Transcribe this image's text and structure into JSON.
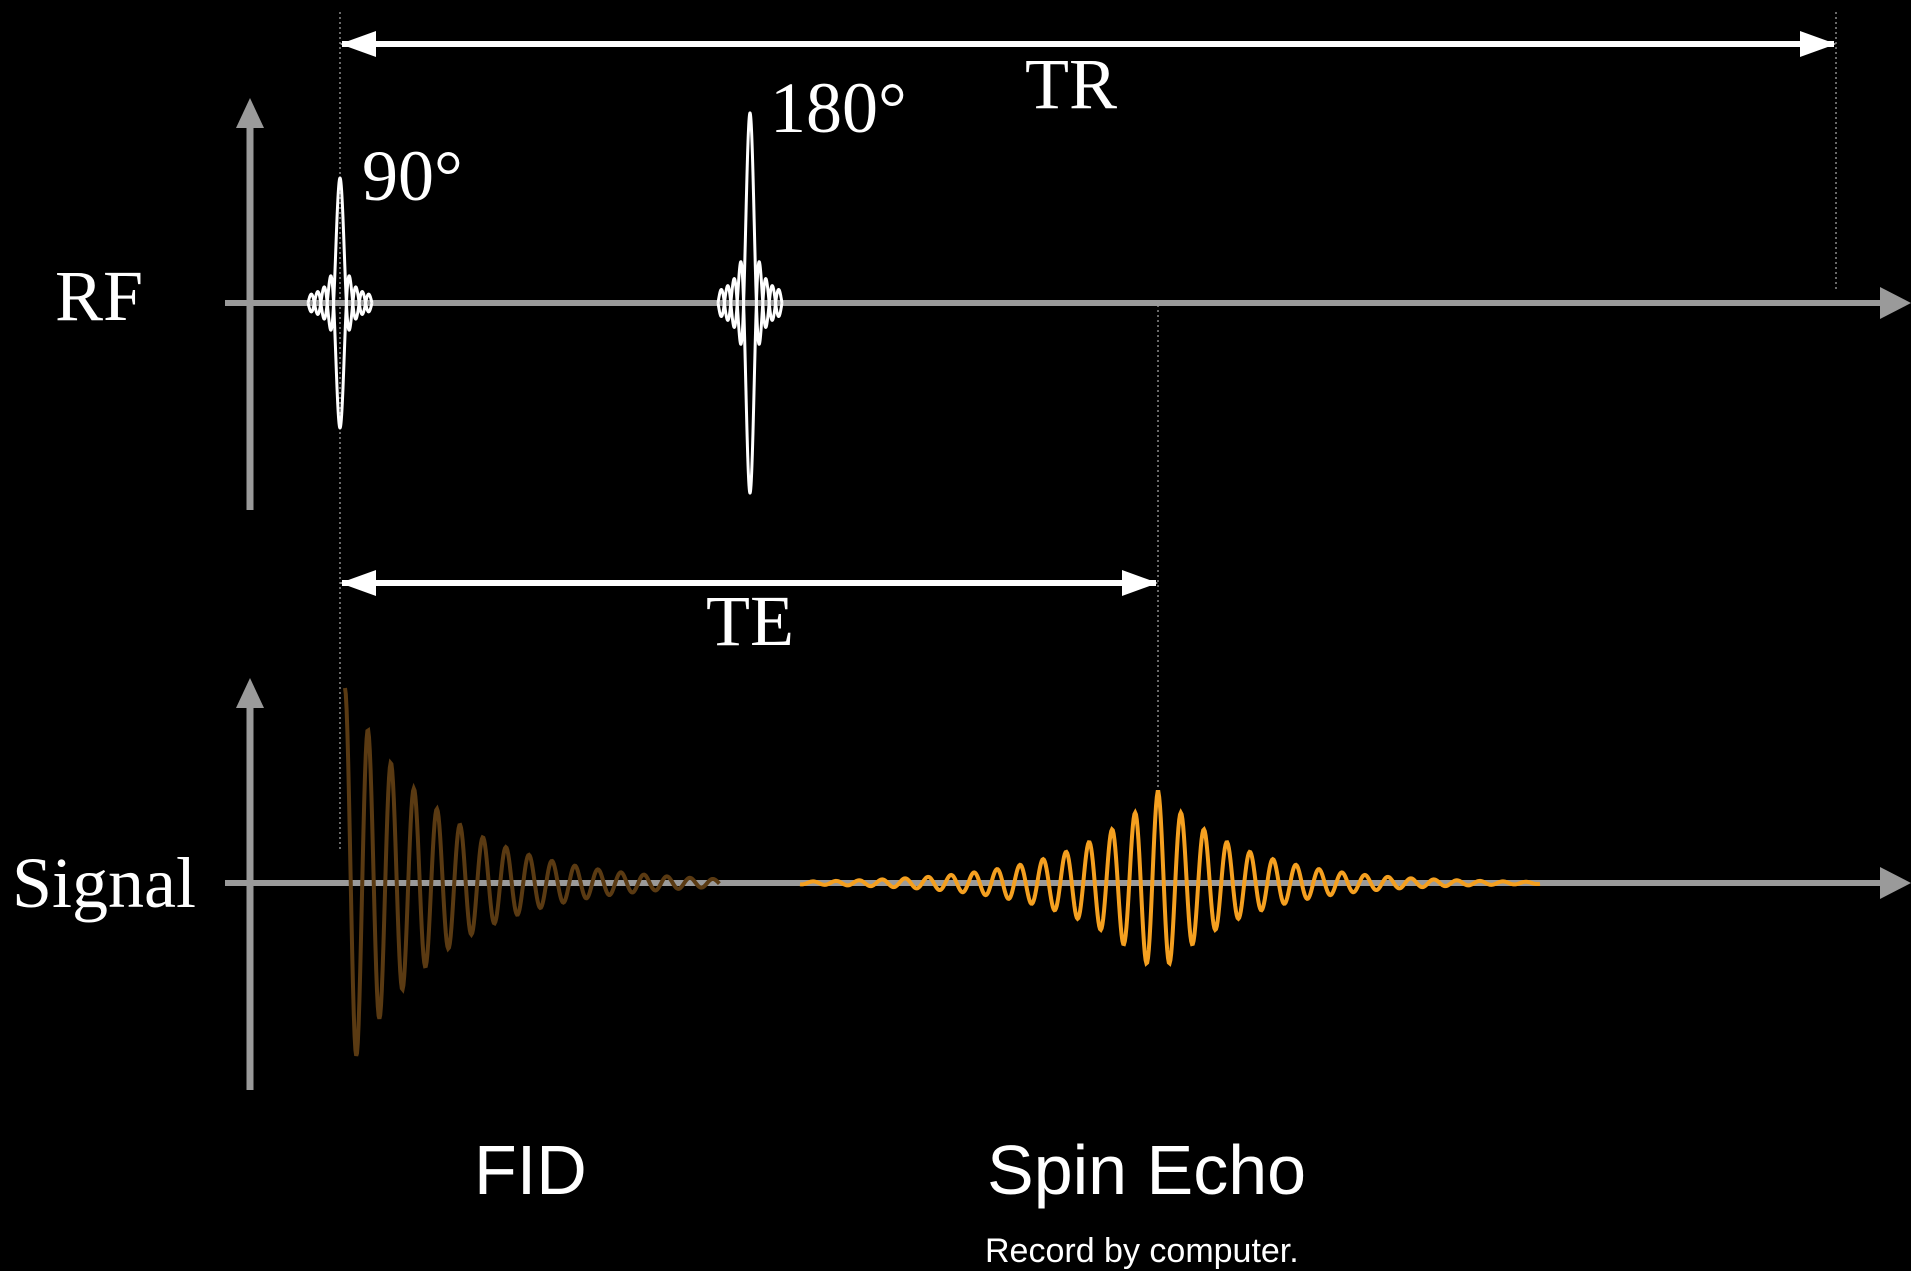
{
  "labels": {
    "rf_axis": "RF",
    "signal_axis": "Signal",
    "pulse_90": "90°",
    "pulse_180": "180°",
    "tr": "TR",
    "te": "TE",
    "fid": "FID",
    "spin_echo": "Spin Echo",
    "caption": "Record by computer."
  },
  "colors": {
    "background": "#000000",
    "axis": "#9a9a9a",
    "pulse": "#ffffff",
    "arrow": "#ffffff",
    "guide": "#8a8a8a",
    "fid": "#5a3a12",
    "echo": "#f5a020",
    "text": "#ffffff"
  }
}
